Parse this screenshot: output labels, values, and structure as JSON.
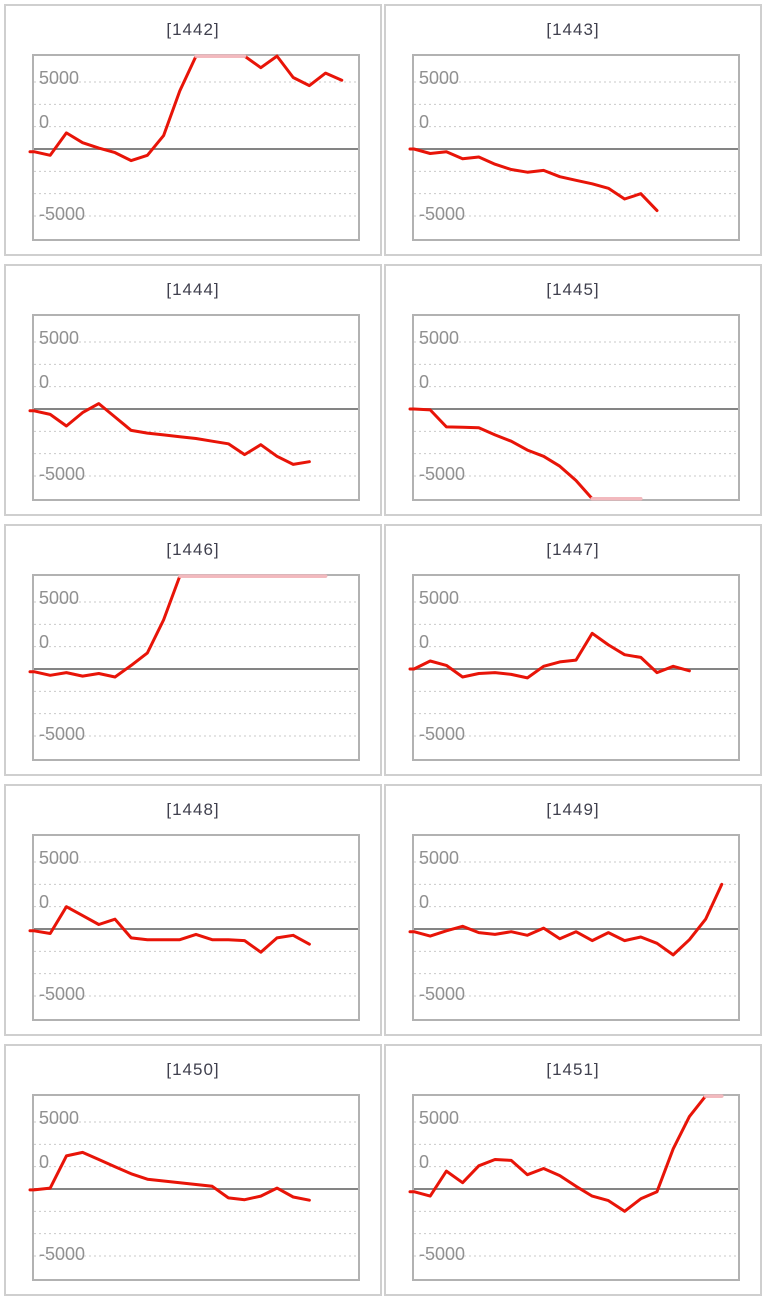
{
  "page": {
    "background": "#ffffff"
  },
  "axis": {
    "y_labels": [
      "5000",
      "0",
      "-5000"
    ],
    "grid_step": 2500,
    "clip_top": 10400,
    "clip_bottom": -10050
  },
  "colors": {
    "line_red": "#e81408",
    "clip_pink": "#f2b9be",
    "grid_dotted": "#c9c9c9",
    "zero_line": "#848484",
    "plot_border": "#b2b2b2",
    "cell_border": "#cfcfcf",
    "axis_label": "#909090",
    "title": "#40404e"
  },
  "chart_data": [
    {
      "type": "line",
      "title": "[1442]",
      "ylim": [
        -10050,
        10400
      ],
      "grid": true,
      "values": [
        -300,
        -700,
        1800,
        700,
        100,
        -400,
        -1300,
        -700,
        1500,
        6500,
        10400,
        10400,
        10400,
        10400,
        9100,
        10400,
        8000,
        7100,
        8500,
        7700
      ]
    },
    {
      "type": "line",
      "title": "[1443]",
      "ylim": [
        -10050,
        10400
      ],
      "grid": true,
      "values": [
        0,
        -500,
        -300,
        -1100,
        -900,
        -1700,
        -2300,
        -2600,
        -2400,
        -3100,
        -3500,
        -3900,
        -4400,
        -5600,
        -5000,
        -6900
      ]
    },
    {
      "type": "line",
      "title": "[1444]",
      "ylim": [
        -10050,
        10400
      ],
      "grid": true,
      "values": [
        -200,
        -600,
        -1900,
        -400,
        600,
        -900,
        -2400,
        -2700,
        -2900,
        -3100,
        -3300,
        -3600,
        -3900,
        -5100,
        -4000,
        -5300,
        -6200,
        -5900
      ]
    },
    {
      "type": "line",
      "title": "[1445]",
      "ylim": [
        -10050,
        10400
      ],
      "grid": true,
      "values": [
        0,
        -100,
        -2000,
        -2050,
        -2100,
        -2900,
        -3600,
        -4600,
        -5300,
        -6400,
        -8000,
        -10050,
        -10050,
        -10050,
        -10050
      ]
    },
    {
      "type": "line",
      "title": "[1446]",
      "ylim": [
        -10050,
        10400
      ],
      "grid": true,
      "values": [
        -300,
        -700,
        -400,
        -800,
        -500,
        -900,
        400,
        1800,
        5500,
        10400,
        10400,
        10400,
        10400,
        10400,
        10400,
        10400,
        10400,
        10400,
        10400
      ]
    },
    {
      "type": "line",
      "title": "[1447]",
      "ylim": [
        -10050,
        10400
      ],
      "grid": true,
      "values": [
        0,
        900,
        400,
        -900,
        -500,
        -400,
        -600,
        -1000,
        300,
        800,
        1000,
        4000,
        2700,
        1600,
        1300,
        -400,
        300,
        -200
      ]
    },
    {
      "type": "line",
      "title": "[1448]",
      "ylim": [
        -10050,
        10400
      ],
      "grid": true,
      "values": [
        -200,
        -500,
        2500,
        1500,
        500,
        1100,
        -1000,
        -1200,
        -1200,
        -1200,
        -600,
        -1200,
        -1200,
        -1300,
        -2600,
        -1000,
        -700,
        -1700
      ]
    },
    {
      "type": "line",
      "title": "[1449]",
      "ylim": [
        -10050,
        10400
      ],
      "grid": true,
      "values": [
        -300,
        -800,
        -200,
        300,
        -400,
        -600,
        -300,
        -700,
        100,
        -1100,
        -300,
        -1300,
        -400,
        -1300,
        -900,
        -1600,
        -2900,
        -1200,
        1100,
        5000
      ]
    },
    {
      "type": "line",
      "title": "[1450]",
      "ylim": [
        -10050,
        10400
      ],
      "grid": true,
      "values": [
        -100,
        100,
        3700,
        4100,
        3300,
        2500,
        1700,
        1100,
        900,
        700,
        500,
        300,
        -1000,
        -1200,
        -800,
        100,
        -900,
        -1250
      ]
    },
    {
      "type": "line",
      "title": "[1451]",
      "ylim": [
        -10050,
        10400
      ],
      "grid": true,
      "values": [
        -300,
        -800,
        2000,
        700,
        2600,
        3300,
        3200,
        1600,
        2300,
        1500,
        300,
        -800,
        -1300,
        -2500,
        -1100,
        -300,
        4500,
        8100,
        10400,
        10400
      ]
    }
  ]
}
